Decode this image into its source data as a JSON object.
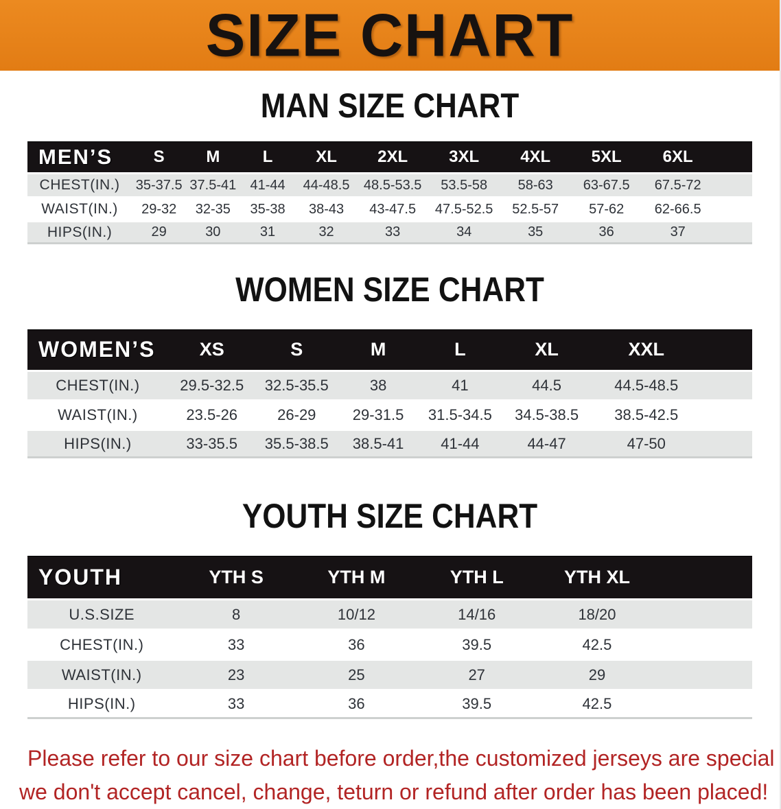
{
  "banner": {
    "title": "SIZE CHART"
  },
  "colors": {
    "banner_orange": "#E8821B",
    "header_black": "#161214",
    "row_gray": "#E4E6E5",
    "note_red": "#B22424"
  },
  "sections": [
    {
      "heading": "MAN SIZE CHART",
      "table": {
        "label_header": "MEN’S",
        "size_headers": [
          "S",
          "M",
          "L",
          "XL",
          "2XL",
          "3XL",
          "4XL",
          "5XL",
          "6XL"
        ],
        "rows": [
          {
            "label": "CHEST(IN.)",
            "values": [
              "35-37.5",
              "37.5-41",
              "41-44",
              "44-48.5",
              "48.5-53.5",
              "53.5-58",
              "58-63",
              "63-67.5",
              "67.5-72"
            ]
          },
          {
            "label": "WAIST(IN.)",
            "values": [
              "29-32",
              "32-35",
              "35-38",
              "38-43",
              "43-47.5",
              "47.5-52.5",
              "52.5-57",
              "57-62",
              "62-66.5"
            ]
          },
          {
            "label": "HIPS(IN.)",
            "values": [
              "29",
              "30",
              "31",
              "32",
              "33",
              "34",
              "35",
              "36",
              "37"
            ]
          }
        ]
      }
    },
    {
      "heading": "WOMEN SIZE CHART",
      "table": {
        "label_header": "WOMEN’S",
        "size_headers": [
          "XS",
          "S",
          "M",
          "L",
          "XL",
          "XXL"
        ],
        "rows": [
          {
            "label": "CHEST(IN.)",
            "values": [
              "29.5-32.5",
              "32.5-35.5",
              "38",
              "41",
              "44.5",
              "44.5-48.5"
            ]
          },
          {
            "label": "WAIST(IN.)",
            "values": [
              "23.5-26",
              "26-29",
              "29-31.5",
              "31.5-34.5",
              "34.5-38.5",
              "38.5-42.5"
            ]
          },
          {
            "label": "HIPS(IN.)",
            "values": [
              "33-35.5",
              "35.5-38.5",
              "38.5-41",
              "41-44",
              "44-47",
              "47-50"
            ]
          }
        ]
      }
    },
    {
      "heading": "YOUTH SIZE CHART",
      "table": {
        "label_header": "YOUTH",
        "size_headers": [
          "YTH S",
          "YTH M",
          "YTH L",
          "YTH XL"
        ],
        "rows": [
          {
            "label": "U.S.SIZE",
            "values": [
              "8",
              "10/12",
              "14/16",
              "18/20"
            ]
          },
          {
            "label": "CHEST(IN.)",
            "values": [
              "33",
              "36",
              "39.5",
              "42.5"
            ]
          },
          {
            "label": "WAIST(IN.)",
            "values": [
              "23",
              "25",
              "27",
              "29"
            ]
          },
          {
            "label": "HIPS(IN.)",
            "values": [
              "33",
              "36",
              "39.5",
              "42.5"
            ]
          }
        ]
      }
    }
  ],
  "footer": {
    "lines": [
      "Please refer to our size chart before order,the customized jerseys are special products,",
      "we don't accept cancel, change, teturn or refund after order has been placed!"
    ]
  }
}
